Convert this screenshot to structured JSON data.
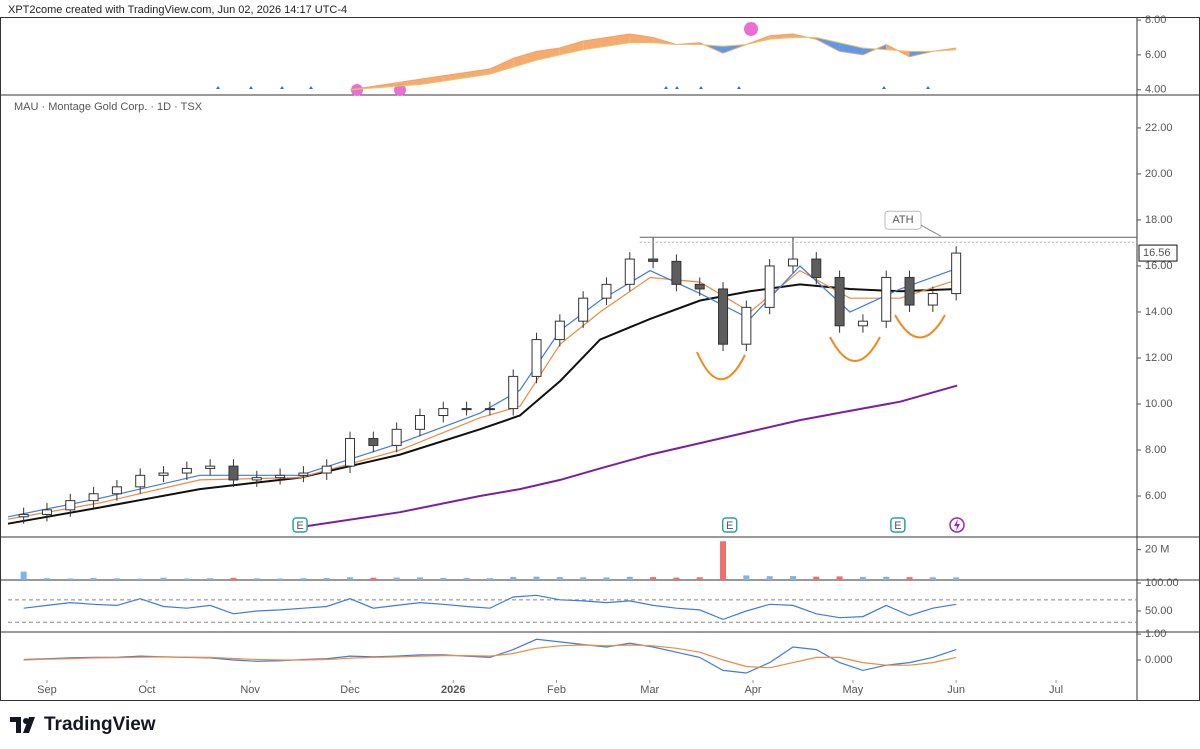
{
  "header": {
    "text": "XPT2come created with TradingView.com, Jun 02, 2026 14:17 UTC-4"
  },
  "footer": {
    "brand": "TradingView"
  },
  "chart_data": [
    {
      "type": "line",
      "xlim": [
        -11.7,
        327.3
      ],
      "ylim": [
        3.7,
        8.12
      ],
      "yticks": [
        {
          "value": 8,
          "label": "8.00"
        },
        {
          "value": 6,
          "label": "6.00"
        },
        {
          "value": 4,
          "label": "4.00"
        }
      ],
      "fill_between": true,
      "up_fill": "#f4a261",
      "down_fill": "#4a8fe7",
      "x": [
        91,
        98,
        105,
        112,
        119,
        126,
        133,
        140,
        147,
        154,
        161,
        168,
        175,
        182,
        189,
        196,
        203,
        210,
        217,
        224,
        231,
        238,
        245,
        252,
        259,
        266,
        273
      ],
      "series": [
        {
          "color": "#f4a261",
          "values": [
            4.0,
            4.2,
            4.4,
            4.6,
            4.8,
            5.0,
            5.2,
            5.8,
            6.2,
            6.4,
            6.8,
            7.0,
            7.2,
            7.0,
            6.6,
            6.7,
            6.1,
            6.6,
            7.1,
            7.2,
            6.9,
            6.2,
            6.0,
            6.6,
            5.9,
            6.2,
            6.4
          ]
        },
        {
          "color": "#e9c46a",
          "values": [
            4.0,
            4.1,
            4.2,
            4.3,
            4.5,
            4.7,
            4.9,
            5.3,
            5.7,
            6.0,
            6.3,
            6.5,
            6.7,
            6.7,
            6.6,
            6.6,
            6.5,
            6.6,
            6.9,
            7.0,
            7.0,
            6.7,
            6.4,
            6.3,
            6.2,
            6.2,
            6.3
          ]
        }
      ]
    },
    {
      "type": "candlestick",
      "title": "MAU · Montage Gold Corp. · 1D · TSX",
      "xlim": [
        -11.7,
        327.3
      ],
      "ylim": [
        4.22,
        23.43
      ],
      "yticks": [
        {
          "value": 22,
          "label": "22.00"
        },
        {
          "value": 20,
          "label": "20.00"
        },
        {
          "value": 18,
          "label": "18.00"
        },
        {
          "value": 16,
          "label": "16.00"
        },
        {
          "value": 14,
          "label": "14.00"
        },
        {
          "value": 12,
          "label": "12.00"
        },
        {
          "value": 10,
          "label": "10.00"
        },
        {
          "value": 8,
          "label": "8.00"
        },
        {
          "value": 6,
          "label": "6.00"
        }
      ],
      "up_color": "#ffffff",
      "down_color": "#5d5d5d",
      "x": [
        -7,
        0,
        7,
        14,
        21,
        28,
        35,
        42,
        49,
        56,
        63,
        70,
        77,
        84,
        91,
        98,
        105,
        112,
        119,
        126,
        133,
        140,
        147,
        154,
        161,
        168,
        175,
        182,
        189,
        196,
        203,
        210,
        217,
        224,
        231,
        238,
        245,
        252,
        259,
        266,
        273
      ],
      "open": [
        5.1,
        5.2,
        5.4,
        5.8,
        6.1,
        6.4,
        6.9,
        7.0,
        7.2,
        7.3,
        6.7,
        6.8,
        6.9,
        7.0,
        7.3,
        8.5,
        8.2,
        8.9,
        9.5,
        9.8,
        9.8,
        9.8,
        11.2,
        12.8,
        13.6,
        14.6,
        15.2,
        16.3,
        16.2,
        15.2,
        15.0,
        12.6,
        14.2,
        16.0,
        16.3,
        15.5,
        13.4,
        13.6,
        15.5,
        14.3,
        14.8
      ],
      "high": [
        5.5,
        5.7,
        6.1,
        6.4,
        6.7,
        7.2,
        7.3,
        7.5,
        7.6,
        7.6,
        7.1,
        7.2,
        7.3,
        7.6,
        8.8,
        8.8,
        9.2,
        9.8,
        10.1,
        10.1,
        10.1,
        11.5,
        13.1,
        13.9,
        14.9,
        15.5,
        16.6,
        17.25,
        16.5,
        15.5,
        15.3,
        14.5,
        16.3,
        17.25,
        16.6,
        15.8,
        13.9,
        15.8,
        15.8,
        15.1,
        16.86
      ],
      "low": [
        4.8,
        4.9,
        5.1,
        5.5,
        5.8,
        6.1,
        6.6,
        6.7,
        6.9,
        6.4,
        6.4,
        6.5,
        6.6,
        6.7,
        7.0,
        7.9,
        7.9,
        8.6,
        9.2,
        9.5,
        9.5,
        9.5,
        10.9,
        12.5,
        13.3,
        14.3,
        14.9,
        15.9,
        14.9,
        14.7,
        12.3,
        12.3,
        13.9,
        15.7,
        15.2,
        13.1,
        13.1,
        13.3,
        14.0,
        14.0,
        14.5
      ],
      "close": [
        5.2,
        5.4,
        5.8,
        6.1,
        6.4,
        6.9,
        7.0,
        7.2,
        7.3,
        6.7,
        6.8,
        6.9,
        7.0,
        7.3,
        8.5,
        8.2,
        8.9,
        9.5,
        9.8,
        9.8,
        9.8,
        11.2,
        12.8,
        13.6,
        14.6,
        15.2,
        16.3,
        16.2,
        15.2,
        15.0,
        12.6,
        14.2,
        16.0,
        16.3,
        15.5,
        13.4,
        13.6,
        15.5,
        14.3,
        14.8,
        16.56
      ],
      "overlays": [
        {
          "color": "#7b1fa2",
          "width": 2,
          "x": [
            -11.7,
            15.9,
            45.9,
            76.0,
            106.0,
            130.0,
            142.0,
            154.1,
            166.1,
            181.1,
            196.1,
            211.1,
            226.1,
            241.1,
            256.2,
            273.3
          ],
          "values": [
            null,
            null,
            null,
            4.65,
            5.3,
            6.0,
            6.3,
            6.7,
            7.2,
            7.8,
            8.3,
            8.8,
            9.3,
            9.7,
            10.1,
            10.8
          ]
        },
        {
          "color": "#111111",
          "width": 2,
          "x": [
            -11.7,
            15.9,
            45.9,
            76.0,
            106.0,
            130.0,
            142.0,
            154.1,
            166.1,
            181.1,
            196.1,
            211.1,
            226.1,
            241.1,
            256.2,
            273.3
          ],
          "values": [
            4.8,
            5.5,
            6.3,
            6.8,
            7.8,
            8.9,
            9.5,
            11.0,
            12.8,
            13.7,
            14.5,
            14.9,
            15.2,
            15.0,
            14.9,
            15.0
          ]
        },
        {
          "color": "#f08a3c",
          "width": 1.2,
          "x": [
            -11.7,
            15.9,
            45.9,
            76.0,
            106.0,
            130.0,
            142.0,
            154.1,
            166.1,
            181.1,
            196.1,
            211.1,
            226.1,
            241.1,
            256.2,
            273.3
          ],
          "values": [
            5.0,
            5.7,
            6.7,
            6.8,
            8.0,
            9.4,
            9.9,
            12.6,
            14.0,
            15.5,
            15.3,
            14.0,
            15.8,
            14.6,
            14.6,
            15.4
          ]
        },
        {
          "color": "#3d7be0",
          "width": 1.2,
          "x": [
            -11.7,
            15.9,
            45.9,
            76.0,
            106.0,
            130.0,
            142.0,
            154.1,
            166.1,
            181.1,
            196.1,
            211.1,
            226.1,
            241.1,
            256.2,
            273.3
          ],
          "values": [
            5.1,
            5.9,
            6.9,
            6.9,
            8.3,
            9.6,
            10.6,
            13.2,
            14.5,
            15.8,
            14.8,
            13.7,
            16.0,
            14.0,
            15.0,
            15.9
          ]
        }
      ],
      "annotations": [
        {
          "label": "ATH",
          "x": 178,
          "value": 17.25
        }
      ],
      "last_price": 16.56,
      "earnings": [
        {
          "x": 76,
          "label": "E"
        },
        {
          "x": 205,
          "label": "E"
        },
        {
          "x": 255.5,
          "label": "E"
        }
      ]
    },
    {
      "type": "bar",
      "xlim": [
        -11.7,
        327.3
      ],
      "ylim": [
        0,
        28300000
      ],
      "yticks": [
        {
          "value": 20000000,
          "label": "20 M"
        }
      ],
      "up_color": "#7fb3e8",
      "down_color": "#ee6f6f",
      "x": [
        -7,
        0,
        7,
        14,
        21,
        28,
        35,
        42,
        49,
        56,
        63,
        70,
        77,
        84,
        91,
        98,
        105,
        112,
        119,
        126,
        133,
        140,
        147,
        154,
        161,
        168,
        175,
        182,
        189,
        196,
        203,
        210,
        217,
        224,
        231,
        238,
        245,
        252,
        259,
        266,
        273
      ],
      "values": [
        5500000,
        1200000,
        1000000,
        1300000,
        1100000,
        900000,
        1500000,
        1000000,
        1200000,
        1400000,
        1100000,
        1000000,
        1200000,
        1300000,
        1800000,
        1500000,
        1600000,
        1700000,
        1400000,
        1300000,
        1200000,
        2000000,
        2200000,
        1900000,
        1800000,
        1700000,
        2100000,
        1900000,
        1600000,
        1800000,
        25500000,
        3000000,
        2500000,
        2600000,
        2200000,
        2400000,
        2000000,
        2100000,
        1900000,
        1800000,
        1700000
      ]
    },
    {
      "type": "line",
      "xlim": [
        -11.7,
        327.3
      ],
      "ylim": [
        12.5,
        105.4
      ],
      "yticks": [
        {
          "value": 100,
          "label": "100.00"
        },
        {
          "value": 50,
          "label": "50.00"
        }
      ],
      "bands": [
        70,
        30
      ],
      "x": [
        -7,
        0,
        7,
        14,
        21,
        28,
        35,
        42,
        49,
        56,
        63,
        70,
        77,
        84,
        91,
        98,
        105,
        112,
        119,
        126,
        133,
        140,
        147,
        154,
        161,
        168,
        175,
        182,
        189,
        196,
        203,
        210,
        217,
        224,
        231,
        238,
        245,
        252,
        259,
        266,
        273
      ],
      "series": [
        {
          "color": "#3d7be0",
          "values": [
            55,
            60,
            65,
            62,
            60,
            72,
            58,
            55,
            60,
            45,
            50,
            52,
            55,
            58,
            72,
            55,
            60,
            65,
            62,
            58,
            55,
            75,
            78,
            70,
            68,
            65,
            68,
            60,
            55,
            52,
            35,
            50,
            62,
            60,
            45,
            38,
            40,
            60,
            42,
            55,
            62
          ]
        }
      ]
    },
    {
      "type": "line",
      "xlim": [
        -11.7,
        327.3
      ],
      "ylim": [
        -0.77,
        1.08
      ],
      "yticks": [
        {
          "value": 1,
          "label": "1.00"
        },
        {
          "value": 0,
          "label": "0.000"
        }
      ],
      "xticks": [
        {
          "value": 0,
          "label": "Sep"
        },
        {
          "value": 30,
          "label": "Oct"
        },
        {
          "value": 61,
          "label": "Nov"
        },
        {
          "value": 91,
          "label": "Dec"
        },
        {
          "value": 122,
          "label": "2026"
        },
        {
          "value": 153,
          "label": "Feb"
        },
        {
          "value": 181,
          "label": "Mar"
        },
        {
          "value": 212,
          "label": "Apr"
        },
        {
          "value": 242,
          "label": "May"
        },
        {
          "value": 273,
          "label": "Jun"
        },
        {
          "value": 303,
          "label": "Jul"
        }
      ],
      "x": [
        -7,
        0,
        7,
        14,
        21,
        28,
        35,
        42,
        49,
        56,
        63,
        70,
        77,
        84,
        91,
        98,
        105,
        112,
        119,
        126,
        133,
        140,
        147,
        154,
        161,
        168,
        175,
        182,
        189,
        196,
        203,
        210,
        217,
        224,
        231,
        238,
        245,
        252,
        259,
        266,
        273
      ],
      "series": [
        {
          "color": "#3d7be0",
          "values": [
            0.02,
            0.05,
            0.08,
            0.1,
            0.1,
            0.15,
            0.12,
            0.1,
            0.08,
            0.0,
            -0.05,
            -0.03,
            0.02,
            0.05,
            0.15,
            0.12,
            0.15,
            0.2,
            0.2,
            0.15,
            0.1,
            0.4,
            0.8,
            0.7,
            0.6,
            0.5,
            0.65,
            0.5,
            0.3,
            0.1,
            -0.4,
            -0.5,
            -0.1,
            0.5,
            0.4,
            -0.1,
            -0.4,
            -0.2,
            -0.1,
            0.1,
            0.4
          ]
        },
        {
          "color": "#f08a3c",
          "values": [
            0.0,
            0.03,
            0.05,
            0.08,
            0.09,
            0.11,
            0.12,
            0.11,
            0.1,
            0.06,
            0.02,
            0.0,
            0.0,
            0.02,
            0.07,
            0.1,
            0.12,
            0.15,
            0.17,
            0.17,
            0.15,
            0.25,
            0.45,
            0.55,
            0.58,
            0.55,
            0.58,
            0.55,
            0.45,
            0.3,
            0.0,
            -0.25,
            -0.3,
            -0.1,
            0.1,
            0.1,
            -0.1,
            -0.2,
            -0.2,
            -0.1,
            0.1
          ]
        }
      ]
    }
  ]
}
